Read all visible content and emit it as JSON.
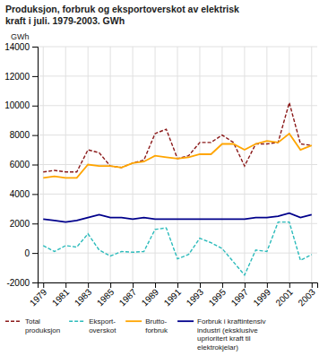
{
  "chart_data": {
    "type": "line",
    "title": "Produksjon, forbruk og eksportoverskot av elektrisk\nkraft i juli. 1979-2003. GWh",
    "ylabel": "GWh",
    "x": [
      1979,
      1980,
      1981,
      1982,
      1983,
      1984,
      1985,
      1986,
      1987,
      1988,
      1989,
      1990,
      1991,
      1992,
      1993,
      1994,
      1995,
      1996,
      1997,
      1998,
      1999,
      2000,
      2001,
      2002,
      2003
    ],
    "series": [
      {
        "name": "Total\nproduksjon",
        "color": "#8B1A1A",
        "line_style": "dashed",
        "values": [
          5500,
          5600,
          5500,
          5500,
          7000,
          6800,
          5900,
          5800,
          6100,
          6300,
          8100,
          8400,
          6400,
          6600,
          7500,
          7500,
          8000,
          7500,
          5900,
          7400,
          7400,
          7500,
          10200,
          7400,
          7300
        ]
      },
      {
        "name": "Eksport-\noverskot",
        "color": "#2BBBBB",
        "line_style": "dashed",
        "values": [
          500,
          100,
          500,
          400,
          1300,
          200,
          -200,
          100,
          50,
          100,
          1600,
          1700,
          -400,
          -100,
          1000,
          700,
          300,
          -600,
          -1500,
          200,
          100,
          2100,
          2100,
          -500,
          -100
        ]
      },
      {
        "name": "Brutto-\nforbruk",
        "color": "#FFA500",
        "line_style": "solid",
        "values": [
          5100,
          5200,
          5100,
          5100,
          6000,
          5900,
          5900,
          5800,
          6100,
          6200,
          6600,
          6500,
          6400,
          6500,
          6700,
          6700,
          7400,
          7400,
          7000,
          7400,
          7600,
          7500,
          8100,
          7000,
          7300
        ]
      },
      {
        "name": "Forbruk i kraftintensiv\nindustri (eksklusive\nuprioritert kraft til\nelektrokjelar)",
        "color": "#00008B",
        "line_style": "solid",
        "values": [
          2300,
          2200,
          2100,
          2200,
          2400,
          2600,
          2400,
          2400,
          2300,
          2400,
          2300,
          2300,
          2300,
          2300,
          2300,
          2300,
          2300,
          2300,
          2300,
          2400,
          2400,
          2500,
          2700,
          2400,
          2600
        ]
      }
    ],
    "xlim": [
      1978.5,
      2003.5
    ],
    "xticks": [
      1979,
      1981,
      1983,
      1985,
      1987,
      1989,
      1991,
      1993,
      1995,
      1997,
      1999,
      2001,
      2003
    ],
    "ylim": [
      -2000,
      14000
    ],
    "yticks": [
      -2000,
      0,
      2000,
      4000,
      6000,
      8000,
      10000,
      12000,
      14000
    ],
    "grid": true,
    "legend": "bottom"
  }
}
